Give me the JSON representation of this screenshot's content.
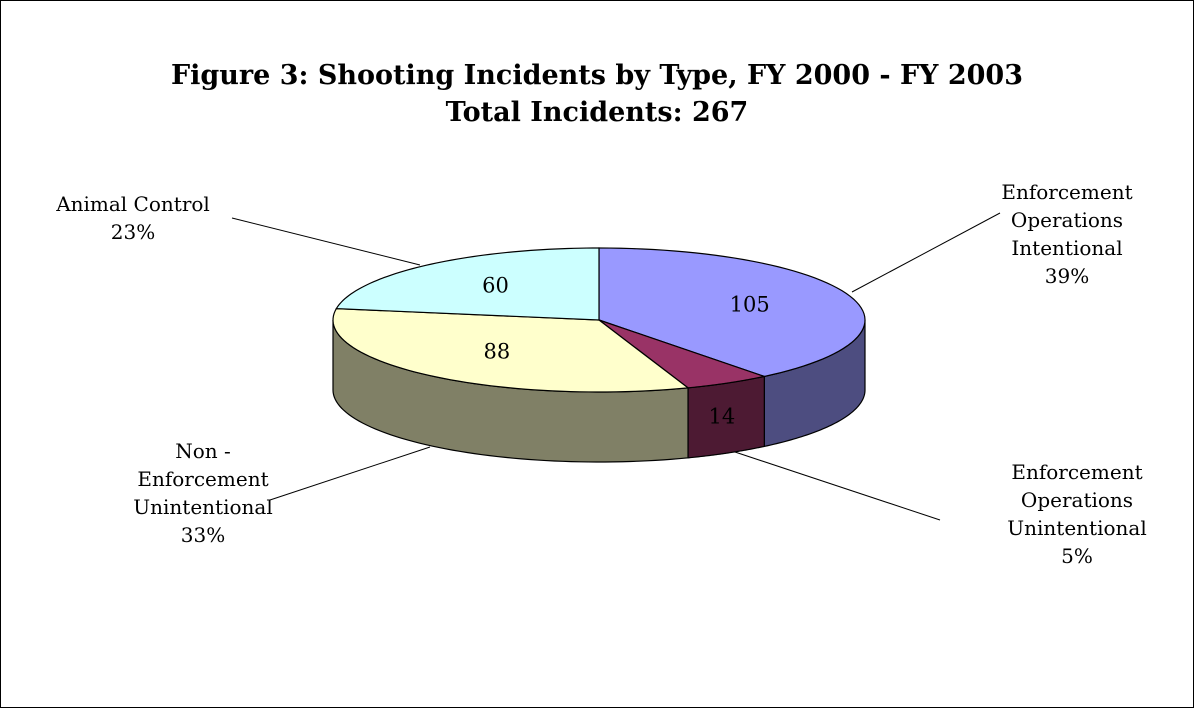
{
  "chart_data": {
    "type": "pie3d",
    "title": "Figure 3:  Shooting Incidents by Type, FY 2000 - FY 2003",
    "subtitle": "Total Incidents: 267",
    "categories": [
      "Enforcement\nOperations\nIntentional",
      "Enforcement\nOperations\nUnintentional",
      "Non -\nEnforcement\nUnintentional",
      "Animal Control"
    ],
    "values": [
      105,
      14,
      88,
      60
    ],
    "percentages": [
      39,
      5,
      33,
      23
    ],
    "percentage_labels": [
      "39%",
      "5%",
      "33%",
      "23%"
    ],
    "colors": [
      "#9999ff",
      "#993366",
      "#ffffcc",
      "#ccffff"
    ],
    "side_colors": [
      "#4d4d80",
      "#4d1a33",
      "#808066",
      "#668080"
    ]
  }
}
